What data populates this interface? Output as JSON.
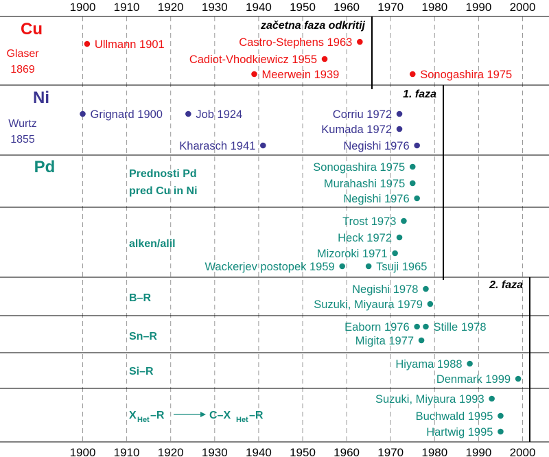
{
  "axis": {
    "years": [
      "1900",
      "1910",
      "1920",
      "1930",
      "1940",
      "1950",
      "1960",
      "1970",
      "1980",
      "1990",
      "2000"
    ],
    "min": 1900,
    "max": 2000
  },
  "colors": {
    "cu": "#ee1111",
    "ni": "#3b3591",
    "pd": "#138b7d",
    "black": "#000000",
    "grid": "#999999"
  },
  "rows": [
    {
      "key": "cu",
      "labels": [
        {
          "text": "Cu",
          "style": "big"
        },
        {
          "text": "Glaser",
          "style": "small"
        },
        {
          "text": "1869",
          "style": "small"
        }
      ]
    },
    {
      "key": "ni",
      "labels": [
        {
          "text": "Ni",
          "style": "big"
        },
        {
          "text": "Wurtz",
          "style": "small"
        },
        {
          "text": "1855",
          "style": "small"
        }
      ]
    },
    {
      "key": "pd",
      "labels": [
        {
          "text": "Pd",
          "style": "big"
        }
      ]
    },
    {
      "key": "alkene",
      "labels": []
    },
    {
      "key": "boron",
      "labels": []
    },
    {
      "key": "tin",
      "labels": []
    },
    {
      "key": "silicon",
      "labels": []
    },
    {
      "key": "heteroatom",
      "labels": []
    }
  ],
  "phases": [
    {
      "text": "začetna faza odkritij"
    },
    {
      "text": "1. faza"
    },
    {
      "text": "2. faza"
    }
  ],
  "notes": [
    {
      "text": "Prednosti Pd"
    },
    {
      "text": "pred Cu in Ni"
    },
    {
      "text": "alken/alil"
    },
    {
      "text": "B–R"
    },
    {
      "text": "Sn–R"
    },
    {
      "text": "Si–R"
    }
  ],
  "xhet": {
    "x": "X",
    "het": "Het",
    "r": "–R",
    "c": "C–X",
    "r2": "–R"
  },
  "chart_data": {
    "type": "scatter",
    "x_axis_ticks": [
      1900,
      1910,
      1920,
      1930,
      1940,
      1950,
      1960,
      1970,
      1980,
      1990,
      2000
    ],
    "xlim": [
      1900,
      2000
    ],
    "grid": true,
    "series": [
      {
        "name": "Cu",
        "color": "#ee1111",
        "points": [
          {
            "x": 1901,
            "label": "Ullmann 1901",
            "side": "right"
          },
          {
            "x": 1963,
            "label": "Castro-Stephens 1963",
            "side": "left"
          },
          {
            "x": 1955,
            "label": "Cadiot-Vhodkiewicz 1955",
            "side": "left"
          },
          {
            "x": 1939,
            "label": "Meerwein 1939",
            "side": "right"
          },
          {
            "x": 1975,
            "label": "Sonogashira 1975",
            "side": "right"
          }
        ]
      },
      {
        "name": "Ni",
        "color": "#3b3591",
        "points": [
          {
            "x": 1900,
            "label": "Grignard 1900",
            "side": "right"
          },
          {
            "x": 1924,
            "label": "Job 1924",
            "side": "right"
          },
          {
            "x": 1972,
            "label": "Corriu 1972",
            "side": "left"
          },
          {
            "x": 1972,
            "label": "Kumada 1972",
            "side": "left"
          },
          {
            "x": 1941,
            "label": "Kharasch 1941",
            "side": "left"
          },
          {
            "x": 1976,
            "label": "Negishi 1976",
            "side": "left"
          }
        ]
      },
      {
        "name": "Pd",
        "color": "#138b7d",
        "points": [
          {
            "x": 1975,
            "label": "Sonogashira 1975",
            "side": "left"
          },
          {
            "x": 1975,
            "label": "Murahashi 1975",
            "side": "left"
          },
          {
            "x": 1976,
            "label": "Negishi 1976",
            "side": "left"
          },
          {
            "x": 1973,
            "label": "Trost 1973",
            "side": "left"
          },
          {
            "x": 1972,
            "label": "Heck 1972",
            "side": "left"
          },
          {
            "x": 1971,
            "label": "Mizoroki 1971",
            "side": "left"
          },
          {
            "x": 1959,
            "label": "Wackerjev postopek 1959",
            "side": "left"
          },
          {
            "x": 1965,
            "label": "Tsuji 1965",
            "side": "right"
          },
          {
            "x": 1978,
            "label": "Negishi 1978",
            "side": "left"
          },
          {
            "x": 1979,
            "label": "Suzuki, Miyaura 1979",
            "side": "left"
          },
          {
            "x": 1976,
            "label": "Eaborn 1976",
            "side": "left"
          },
          {
            "x": 1978,
            "label": "Stille 1978",
            "side": "right"
          },
          {
            "x": 1977,
            "label": "Migita 1977",
            "side": "left"
          },
          {
            "x": 1988,
            "label": "Hiyama 1988",
            "side": "left"
          },
          {
            "x": 1999,
            "label": "Denmark 1999",
            "side": "left"
          },
          {
            "x": 1993,
            "label": "Suzuki, Miyaura 1993",
            "side": "left"
          },
          {
            "x": 1995,
            "label": "Buchwald 1995",
            "side": "left"
          },
          {
            "x": 1995,
            "label": "Hartwig 1995",
            "side": "left"
          }
        ]
      }
    ]
  }
}
